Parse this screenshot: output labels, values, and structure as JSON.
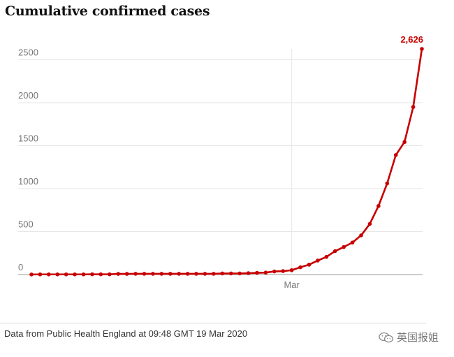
{
  "title": "Cumulative confirmed cases",
  "source": "Data from Public Health England at 09:48 GMT 19 Mar 2020",
  "watermark": {
    "text": "英国报姐",
    "icon": "wechat-icon"
  },
  "colors": {
    "line": "#c70000",
    "grid": "#e6e6e6",
    "axis": "#767676",
    "baseline": "#999999"
  },
  "chart_data": {
    "type": "line",
    "title": "Cumulative confirmed cases",
    "xlabel": "",
    "ylabel": "",
    "x_tick_labels": [
      "Mar"
    ],
    "x_tick_index": 30,
    "y_ticks": [
      0,
      500,
      1000,
      1500,
      2000,
      2500
    ],
    "ylim": [
      0,
      2626
    ],
    "grid": true,
    "end_label": "2,626",
    "series": [
      {
        "values": [
          1,
          2,
          2,
          2,
          2,
          2,
          2,
          3,
          3,
          3,
          8,
          8,
          9,
          9,
          9,
          9,
          9,
          9,
          9,
          9,
          9,
          9,
          13,
          13,
          13,
          16,
          20,
          23,
          36,
          40,
          51,
          85,
          115,
          163,
          206,
          273,
          321,
          373,
          456,
          590,
          798,
          1061,
          1391,
          1543,
          1950,
          2626
        ]
      }
    ]
  }
}
